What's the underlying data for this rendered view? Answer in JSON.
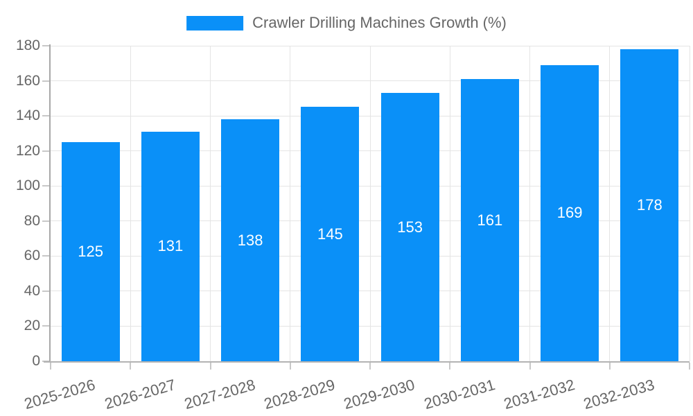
{
  "legend": {
    "label": "Crawler Drilling Machines Growth (%)"
  },
  "chart_data": {
    "type": "bar",
    "title": "Crawler Drilling Machines Growth (%)",
    "categories": [
      "2025-2026",
      "2026-2027",
      "2027-2028",
      "2028-2029",
      "2029-2030",
      "2030-2031",
      "2031-2032",
      "2032-2033"
    ],
    "series": [
      {
        "name": "Crawler Drilling Machines Growth (%)",
        "values": [
          125,
          131,
          138,
          145,
          153,
          161,
          169,
          178
        ]
      }
    ],
    "xlabel": "",
    "ylabel": "",
    "ylim": [
      0,
      180
    ],
    "ytick_step": 20,
    "grid": true,
    "legend_position": "top-center",
    "value_labels": "inside-center",
    "colors": {
      "bar": "#0a90f8",
      "value_label": "#ffffff",
      "tick_text": "#666666",
      "legend_text": "#666666",
      "gridline": "#e4e4e4",
      "axis_line": "#a8a8a8",
      "tick_mark": "#c8c8c8",
      "background": "#ffffff"
    }
  }
}
